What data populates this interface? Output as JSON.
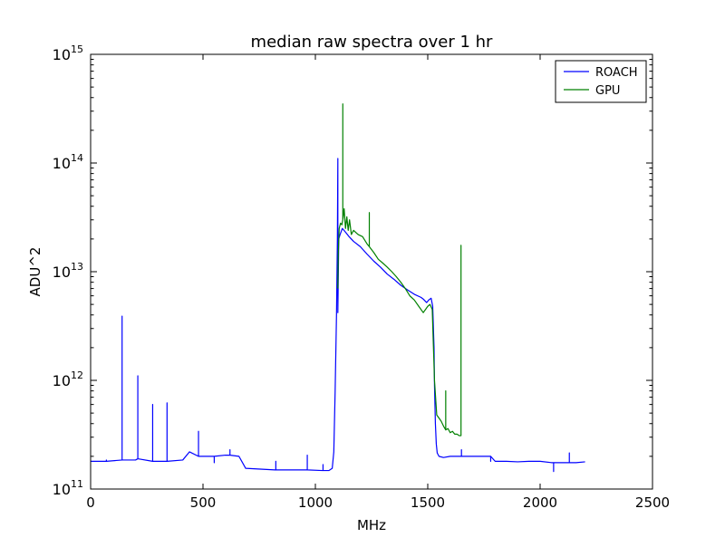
{
  "chart_data": {
    "type": "line",
    "title": "median raw spectra over 1 hr",
    "xlabel": "MHz",
    "ylabel": "ADU^2",
    "xlim": [
      0,
      2500
    ],
    "ylim": [
      100000000000,
      1000000000000000
    ],
    "yscale": "log",
    "grid": false,
    "legend_position": "top-right",
    "x_ticks": [
      0,
      500,
      1000,
      1500,
      2000,
      2500
    ],
    "x_tick_labels": [
      "0",
      "500",
      "1000",
      "1500",
      "2000",
      "2500"
    ],
    "y_ticks": [
      100000000000,
      1000000000000,
      10000000000000,
      100000000000000,
      1000000000000000
    ],
    "y_tick_labels": [
      {
        "base": "10",
        "exp": "11"
      },
      {
        "base": "10",
        "exp": "12"
      },
      {
        "base": "10",
        "exp": "13"
      },
      {
        "base": "10",
        "exp": "14"
      },
      {
        "base": "10",
        "exp": "15"
      }
    ],
    "series": [
      {
        "name": "ROACH",
        "color": "#0000ff",
        "x": [
          0,
          70,
          70,
          70,
          140,
          140,
          140,
          200,
          210,
          210,
          210,
          276,
          276,
          276,
          340,
          340,
          340,
          410,
          440,
          480,
          480,
          480,
          550,
          550,
          550,
          600,
          620,
          620,
          620,
          660,
          690,
          820,
          824,
          824,
          824,
          960,
          964,
          964,
          964,
          1030,
          1034,
          1034,
          1034,
          1060,
          1075,
          1082,
          1088,
          1094,
          1098,
          1100,
          1100,
          1104,
          1110,
          1120,
          1135,
          1150,
          1170,
          1200,
          1230,
          1260,
          1290,
          1320,
          1350,
          1380,
          1410,
          1440,
          1470,
          1480,
          1495,
          1505,
          1515,
          1522,
          1528,
          1530,
          1534,
          1538,
          1542,
          1550,
          1570,
          1600,
          1650,
          1650,
          1650,
          1700,
          1750,
          1780,
          1780,
          1780,
          1800,
          1850,
          1900,
          1950,
          2000,
          2050,
          2060,
          2060,
          2060,
          2100,
          2130,
          2130,
          2130,
          2160,
          2200
        ],
        "y": [
          180000000000,
          180000000000,
          185000000000,
          180000000000,
          185000000000,
          3900000000000,
          185000000000,
          185000000000,
          190000000000,
          1100000000000,
          190000000000,
          180000000000,
          600000000000,
          180000000000,
          180000000000,
          620000000000,
          180000000000,
          185000000000,
          220000000000,
          200000000000,
          340000000000,
          200000000000,
          200000000000,
          175000000000,
          200000000000,
          205000000000,
          205000000000,
          230000000000,
          205000000000,
          200000000000,
          155000000000,
          150000000000,
          150000000000,
          180000000000,
          150000000000,
          150000000000,
          150000000000,
          205000000000,
          150000000000,
          148000000000,
          148000000000,
          168000000000,
          148000000000,
          148000000000,
          155000000000,
          220000000000,
          800000000000,
          4000000000000,
          20000000000000,
          110000000000000,
          4200000000000,
          20000000000000,
          22000000000000,
          25000000000000,
          23000000000000,
          21000000000000,
          19000000000000,
          17000000000000,
          14500000000000,
          12500000000000,
          11000000000000,
          9500000000000,
          8500000000000,
          7500000000000,
          6800000000000,
          6200000000000,
          5800000000000,
          5600000000000,
          5200000000000,
          5500000000000,
          5700000000000,
          4800000000000,
          2000000000000,
          900000000000,
          400000000000,
          260000000000,
          215000000000,
          200000000000,
          195000000000,
          200000000000,
          200000000000,
          230000000000,
          200000000000,
          200000000000,
          200000000000,
          200000000000,
          180000000000,
          200000000000,
          180000000000,
          180000000000,
          178000000000,
          180000000000,
          180000000000,
          175000000000,
          175000000000,
          145000000000,
          175000000000,
          175000000000,
          175000000000,
          215000000000,
          175000000000,
          175000000000,
          178000000000
        ]
      },
      {
        "name": "GPU",
        "color": "#008000",
        "x": [
          1100,
          1102,
          1106,
          1112,
          1118,
          1122,
          1122,
          1122,
          1128,
          1134,
          1140,
          1146,
          1152,
          1160,
          1170,
          1190,
          1210,
          1230,
          1240,
          1240,
          1240,
          1260,
          1280,
          1300,
          1320,
          1340,
          1360,
          1380,
          1400,
          1420,
          1440,
          1460,
          1480,
          1500,
          1510,
          1520,
          1530,
          1540,
          1550,
          1560,
          1570,
          1580,
          1580,
          1580,
          1590,
          1600,
          1610,
          1620,
          1630,
          1640,
          1648,
          1648,
          1648
        ],
        "y": [
          7000000000000,
          15000000000000,
          25000000000000,
          28000000000000,
          27000000000000,
          30000000000000,
          350000000000000,
          30000000000000,
          38000000000000,
          25000000000000,
          32000000000000,
          24000000000000,
          30000000000000,
          22000000000000,
          24000000000000,
          22000000000000,
          21000000000000,
          18000000000000,
          17000000000000,
          35000000000000,
          17000000000000,
          15000000000000,
          13000000000000,
          12000000000000,
          11000000000000,
          10000000000000,
          9000000000000,
          8000000000000,
          7000000000000,
          6000000000000,
          5500000000000,
          4800000000000,
          4200000000000,
          4800000000000,
          5000000000000,
          4500000000000,
          1000000000000,
          480000000000,
          450000000000,
          420000000000,
          380000000000,
          350000000000,
          800000000000,
          350000000000,
          360000000000,
          330000000000,
          340000000000,
          320000000000,
          320000000000,
          310000000000,
          310000000000,
          17500000000000,
          310000000000
        ]
      }
    ]
  }
}
